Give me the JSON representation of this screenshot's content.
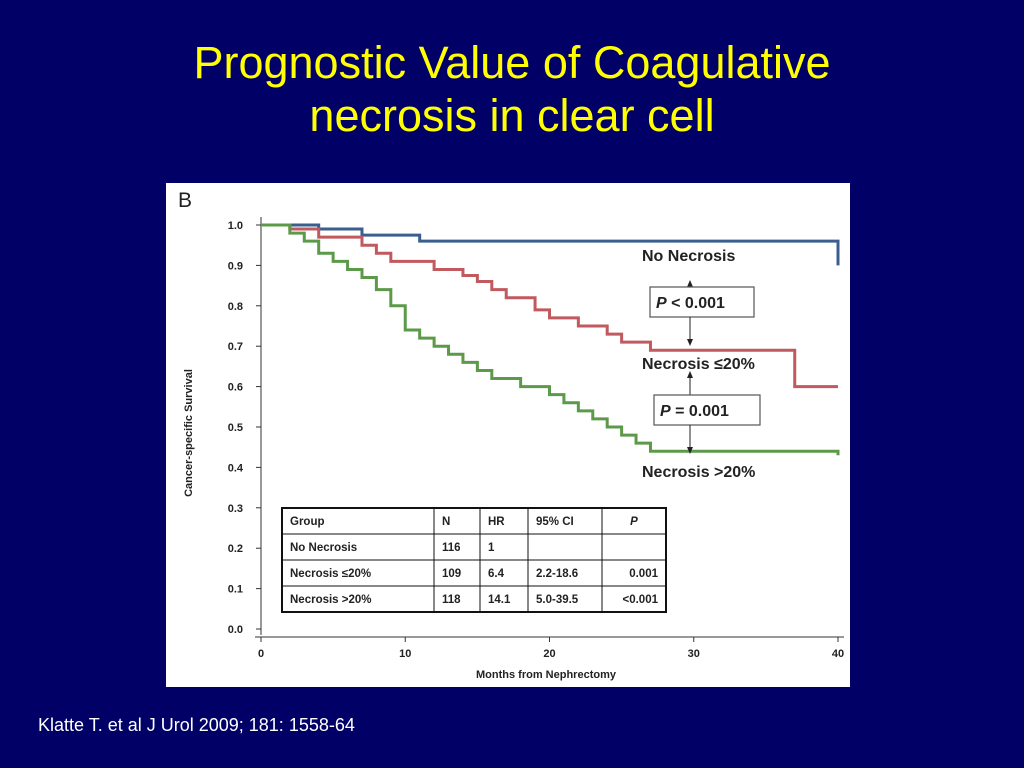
{
  "slide": {
    "title_line1": "Prognostic Value of Coagulative",
    "title_line2": "necrosis in clear cell",
    "citation": "Klatte T. et al J Urol 2009; 181: 1558-64"
  },
  "colors": {
    "background": "#000066",
    "title": "#ffff00",
    "no_necrosis": "#3a5f8f",
    "necrosis_le20": "#c05a5f",
    "necrosis_gt20": "#5c9a4a"
  },
  "chart_data": {
    "type": "line",
    "panel_label": "B",
    "xlabel": "Months from Nephrectomy",
    "ylabel": "Cancer-specific Survival",
    "xlim": [
      0,
      40
    ],
    "ylim": [
      0,
      1.0
    ],
    "x_ticks": [
      "0",
      "10",
      "20",
      "30",
      "40"
    ],
    "y_ticks": [
      "0.0",
      "0.1",
      "0.2",
      "0.3",
      "0.4",
      "0.5",
      "0.6",
      "0.7",
      "0.8",
      "0.9",
      "1.0"
    ],
    "grid": false,
    "step": true,
    "series": [
      {
        "name": "No Necrosis",
        "x": [
          0,
          4,
          7,
          11,
          40,
          40
        ],
        "y": [
          1.0,
          0.99,
          0.975,
          0.96,
          0.96,
          0.9
        ]
      },
      {
        "name": "Necrosis ≤20%",
        "x": [
          0,
          2,
          4,
          7,
          8,
          9,
          12,
          14,
          15,
          16,
          17,
          19,
          20,
          22,
          24,
          25,
          27,
          37,
          40
        ],
        "y": [
          1.0,
          0.99,
          0.97,
          0.95,
          0.93,
          0.91,
          0.89,
          0.875,
          0.86,
          0.84,
          0.82,
          0.79,
          0.77,
          0.75,
          0.73,
          0.71,
          0.69,
          0.6,
          0.6
        ]
      },
      {
        "name": "Necrosis >20%",
        "x": [
          0,
          2,
          3,
          4,
          5,
          6,
          7,
          8,
          9,
          10,
          11,
          12,
          13,
          14,
          15,
          16,
          18,
          20,
          21,
          22,
          23,
          24,
          25,
          26,
          27,
          40
        ],
        "y": [
          1.0,
          0.98,
          0.96,
          0.93,
          0.91,
          0.89,
          0.87,
          0.84,
          0.8,
          0.74,
          0.72,
          0.7,
          0.68,
          0.66,
          0.64,
          0.62,
          0.6,
          0.58,
          0.56,
          0.54,
          0.52,
          0.5,
          0.48,
          0.46,
          0.44,
          0.43
        ]
      }
    ],
    "annotations": {
      "label_no_necrosis": "No Necrosis",
      "label_le20": "Necrosis ≤20%",
      "label_gt20": "Necrosis >20%",
      "pval1_italic": "P",
      "pval1_rest": " < 0.001",
      "pval2_italic": "P",
      "pval2_rest": " = 0.001"
    },
    "table": {
      "headers": [
        "Group",
        "N",
        "HR",
        "95% CI",
        "P"
      ],
      "rows": [
        [
          "No Necrosis",
          "116",
          "1",
          "",
          ""
        ],
        [
          "Necrosis ≤20%",
          "109",
          "6.4",
          "2.2-18.6",
          "0.001"
        ],
        [
          "Necrosis >20%",
          "118",
          "14.1",
          "5.0-39.5",
          "<0.001"
        ]
      ]
    }
  }
}
